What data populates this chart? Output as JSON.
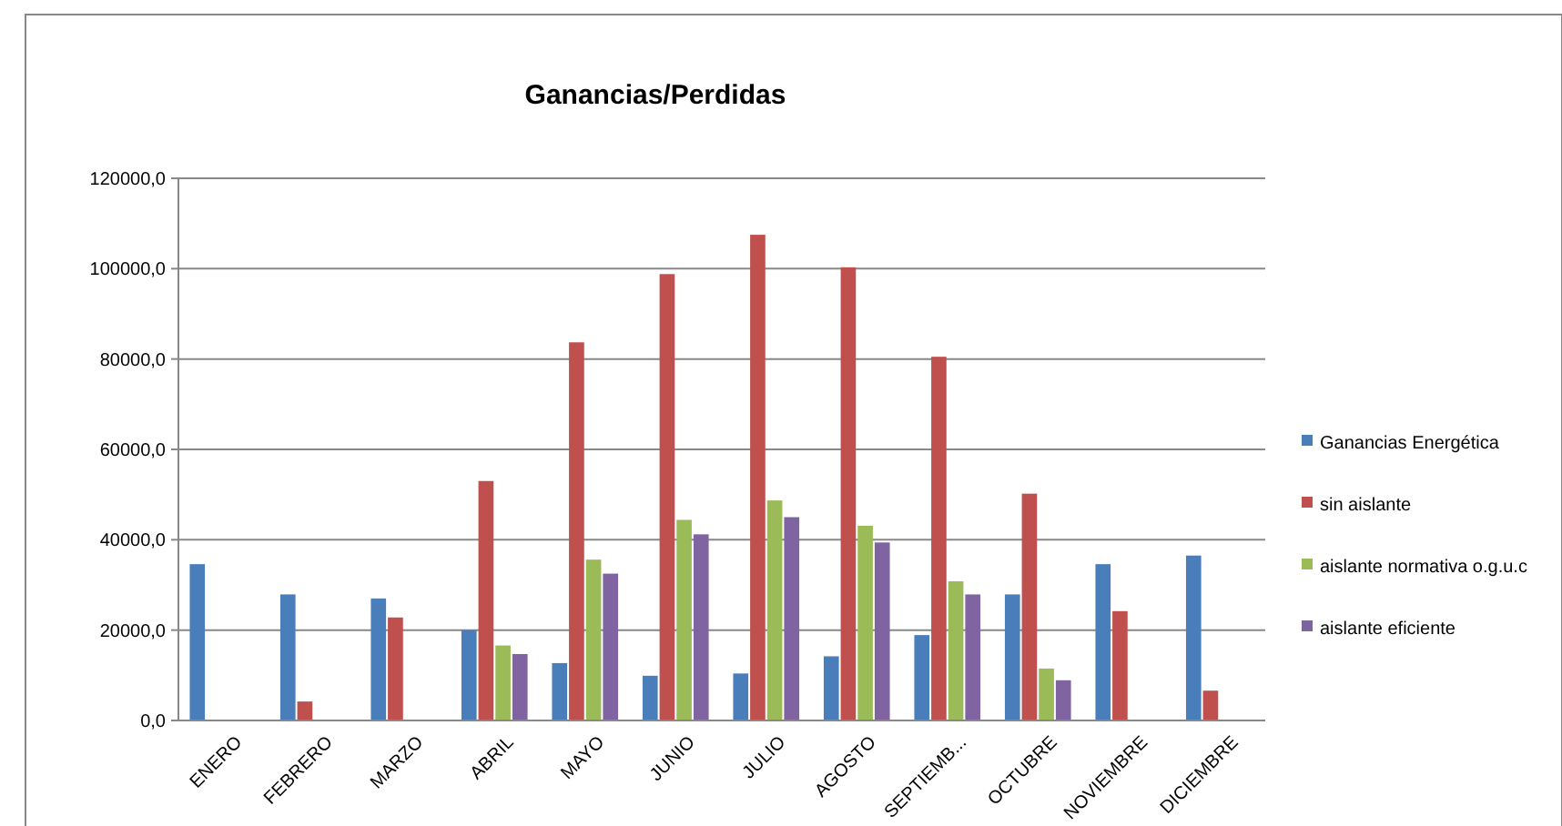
{
  "chart_data": {
    "type": "bar",
    "title": "Ganancias/Perdidas",
    "categories": [
      "ENERO",
      "FEBRERO",
      "MARZO",
      "ABRIL",
      "MAYO",
      "JUNIO",
      "JULIO",
      "AGOSTO",
      "SEPTIEMB...",
      "OCTUBRE",
      "NOVIEMBRE",
      "DICIEMBRE"
    ],
    "series": [
      {
        "name": "Ganancias Energética",
        "color": "#4a7ebb",
        "values": [
          34600,
          27900,
          27000,
          20000,
          12700,
          9900,
          10400,
          14200,
          18900,
          27900,
          34600,
          36500
        ]
      },
      {
        "name": "sin aislante",
        "color": "#c0504d",
        "values": [
          null,
          4200,
          22800,
          53000,
          83700,
          98800,
          107500,
          100300,
          80500,
          50200,
          24200,
          6600
        ]
      },
      {
        "name": "aislante normativa o.g.u.c",
        "color": "#9bbb59",
        "values": [
          null,
          null,
          null,
          16600,
          35600,
          44400,
          48700,
          43100,
          30800,
          11500,
          null,
          null
        ]
      },
      {
        "name": "aislante eficiente",
        "color": "#8064a2",
        "values": [
          null,
          null,
          null,
          14700,
          32500,
          41200,
          45000,
          39400,
          27900,
          8900,
          null,
          null
        ]
      }
    ],
    "ylim": [
      0,
      120000
    ],
    "yticks": [
      {
        "value": 0,
        "label": "0,0"
      },
      {
        "value": 20000,
        "label": "20000,0"
      },
      {
        "value": 40000,
        "label": "40000,0"
      },
      {
        "value": 60000,
        "label": "60000,0"
      },
      {
        "value": 80000,
        "label": "80000,0"
      },
      {
        "value": 100000,
        "label": "100000,0"
      },
      {
        "value": 120000,
        "label": "120000,0"
      }
    ],
    "grid": "y",
    "legend": "right"
  }
}
